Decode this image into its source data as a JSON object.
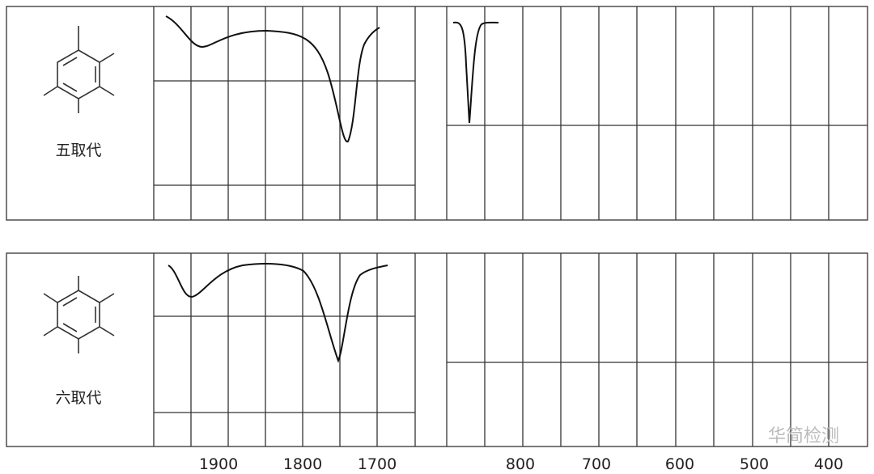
{
  "panels": [
    {
      "label": "五取代"
    },
    {
      "label": "六取代"
    }
  ],
  "axis_labels": [
    "1900",
    "1800",
    "1700",
    "800",
    "700",
    "600",
    "500",
    "400"
  ],
  "watermark": "华简检测"
}
